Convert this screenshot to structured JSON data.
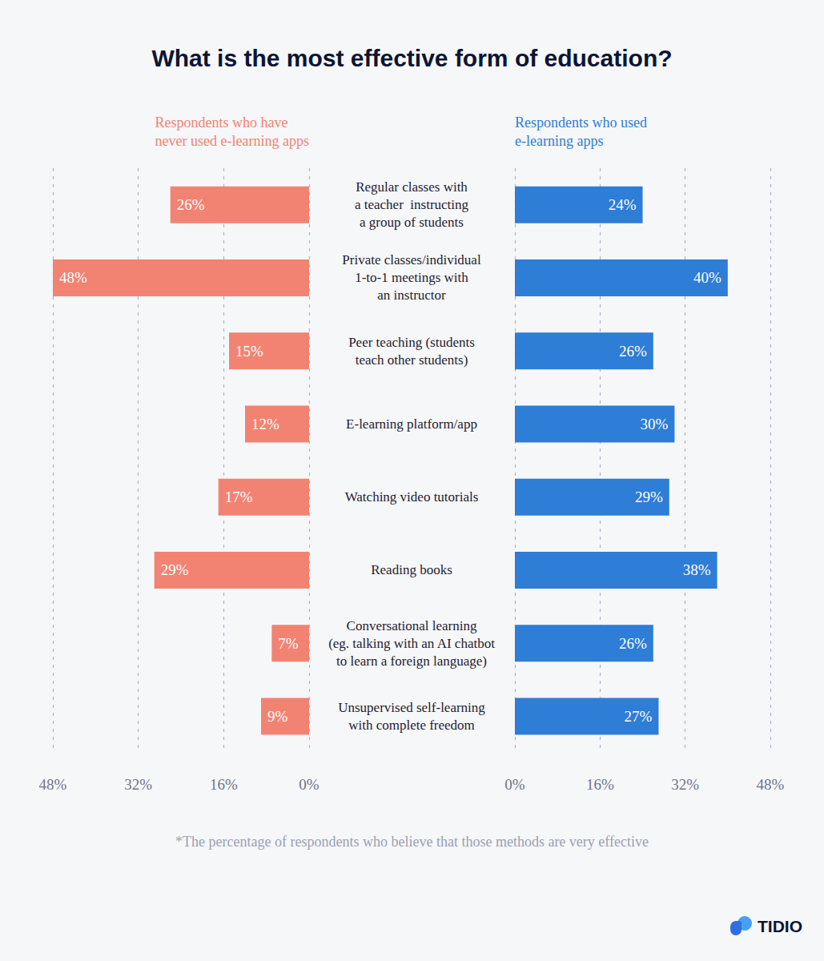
{
  "chart_data": {
    "type": "bar",
    "orientation": "horizontal",
    "title": "What is the most effective form of education?",
    "categories": [
      "Regular classes with\na teacher  instructing\na group of students",
      "Private classes/individual\n1-to-1 meetings with\nan instructor",
      "Peer teaching (students\nteach other students)",
      "E-learning platform/app",
      "Watching video tutorials",
      "Reading books",
      "Conversational learning\n(eg. talking with an AI chatbot\nto learn a foreign language)",
      "Unsupervised self-learning\nwith complete freedom"
    ],
    "series": [
      {
        "name": "Respondents who have\nnever used e-learning apps",
        "color": "#f28372",
        "values": [
          26,
          48,
          15,
          12,
          17,
          29,
          7,
          9
        ],
        "value_labels": [
          "26%",
          "48%",
          "15%",
          "12%",
          "17%",
          "29%",
          "7%",
          "9%"
        ]
      },
      {
        "name": "Respondents who used\ne-learning apps",
        "color": "#2e7dd6",
        "values": [
          24,
          40,
          26,
          30,
          29,
          38,
          26,
          27
        ],
        "value_labels": [
          "24%",
          "40%",
          "26%",
          "30%",
          "29%",
          "38%",
          "26%",
          "27%"
        ]
      }
    ],
    "xlim": [
      0,
      48
    ],
    "xticks": [
      {
        "value": 0,
        "label": "0%"
      },
      {
        "value": 16,
        "label": "16%"
      },
      {
        "value": 32,
        "label": "32%"
      },
      {
        "value": 48,
        "label": "48%"
      }
    ],
    "grid": true,
    "data_labels": true,
    "annotations": [
      "*The percentage of respondents who believe that those methods are very effective",
      "TIDIO"
    ]
  }
}
